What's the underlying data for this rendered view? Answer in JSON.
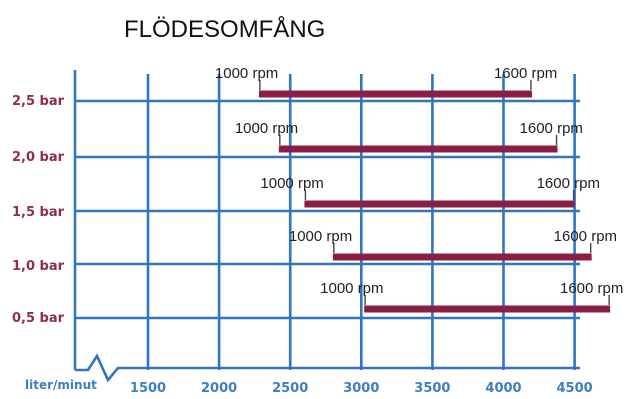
{
  "chart_data": {
    "type": "bar",
    "title": "FLÖDESOMFÅNG",
    "xlabel": "liter/minut",
    "ylabel": "",
    "x_ticks": [
      "1500",
      "2000",
      "2500",
      "3000",
      "3500",
      "4000",
      "4500"
    ],
    "xlim": [
      1000,
      4500
    ],
    "categories": [
      "2,5 bar",
      "2,0 bar",
      "1,5 bar",
      "1,0 bar",
      "0,5 bar"
    ],
    "series": [
      {
        "start": 2280,
        "end": 4200,
        "start_label": "1000 rpm",
        "end_label": "1600 rpm"
      },
      {
        "start": 2420,
        "end": 4380,
        "start_label": "1000 rpm",
        "end_label": "1600 rpm"
      },
      {
        "start": 2600,
        "end": 4500,
        "start_label": "1000 rpm",
        "end_label": "1600 rpm"
      },
      {
        "start": 2800,
        "end": 4620,
        "start_label": "1000 rpm",
        "end_label": "1600 rpm"
      },
      {
        "start": 3020,
        "end": 4750,
        "start_label": "1000 rpm",
        "end_label": "1600 rpm"
      }
    ],
    "grid": true,
    "colors": {
      "bar": "#8b1e45",
      "grid": "#2f75c2",
      "ylabels": "#8e2e48",
      "xlabels": "#3d7fc1"
    }
  }
}
